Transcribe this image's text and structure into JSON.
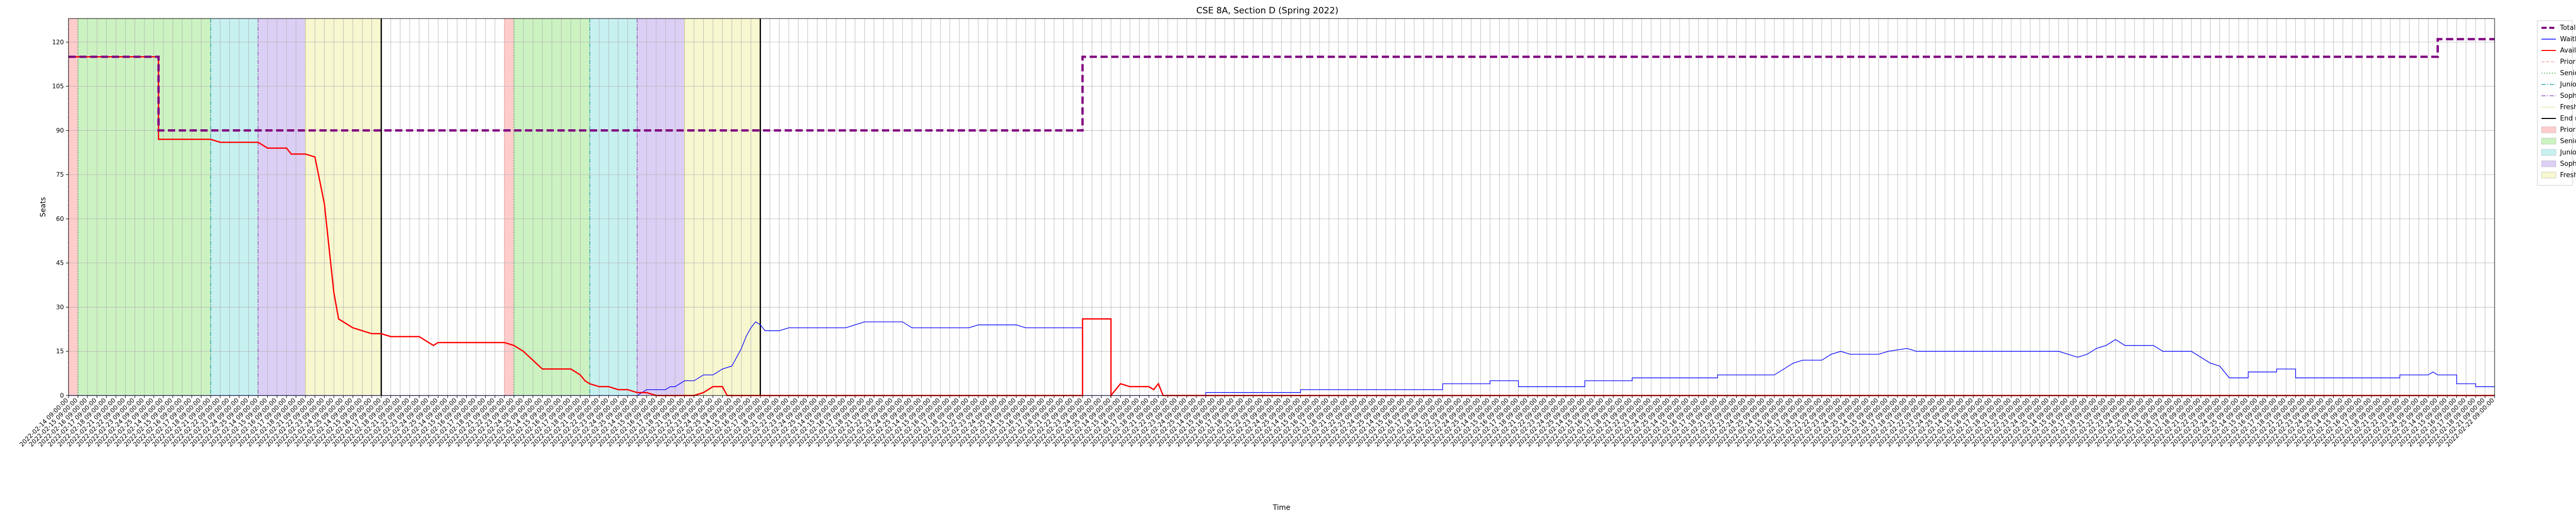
{
  "chart_data": {
    "type": "line",
    "title": "CSE 8A, Section D (Spring 2022)",
    "xlabel": "Time",
    "ylabel": "Seats",
    "ylim": [
      0,
      128
    ],
    "y_ticks": [
      0,
      15,
      30,
      45,
      60,
      75,
      90,
      105,
      120
    ],
    "xlim": [
      0,
      256
    ],
    "x_tick_step": 1,
    "x_tick_labels": [
      "2022-02-14 09:00:00",
      "2022-02-15 09:00:00",
      "2022-02-16 09:00:00",
      "2022-02-17 09:00:00",
      "2022-02-18 09:00:00",
      "2022-02-21 09:00:00",
      "2022-02-22 09:00:00",
      "2022-02-23 09:00:00",
      "2022-02-24 09:00:00",
      "2022-02-25 09:00:00"
    ],
    "grid": true,
    "legend_position": "outside-right",
    "colors": {
      "total": "#800080",
      "waitlist": "#0000ff",
      "available": "#ff0000",
      "phase_line": "#000000",
      "priorities": "#ffcccc",
      "seniors": "#ccf2c2",
      "juniors": "#c7f0f0",
      "sophomores": "#dccff5",
      "freshmen": "#f7f7d0"
    },
    "legend": [
      {
        "label": "Total Seats",
        "kind": "line",
        "color": "#800080",
        "dash": "10,5",
        "width": 4
      },
      {
        "label": "Waitlist",
        "kind": "line",
        "color": "#0000ff",
        "dash": "",
        "width": 1.5
      },
      {
        "label": "Available",
        "kind": "line",
        "color": "#ff0000",
        "dash": "",
        "width": 2
      },
      {
        "label": "Priorities Start",
        "kind": "line",
        "color": "#f4a6a6",
        "dash": "6,3",
        "width": 1.5
      },
      {
        "label": "Seniors Start",
        "kind": "line",
        "color": "#4caf50",
        "dash": "2,3",
        "width": 1.5
      },
      {
        "label": "Juniors Start",
        "kind": "line",
        "color": "#26a6a6",
        "dash": "8,3,2,3",
        "width": 1.5
      },
      {
        "label": "Sophomores Start",
        "kind": "line",
        "color": "#9b59b6",
        "dash": "8,3,2,3",
        "width": 1.5
      },
      {
        "label": "Freshmen Start",
        "kind": "line",
        "color": "#d4d46a",
        "dash": "2,2",
        "width": 1.5
      },
      {
        "label": "End (FP/SP)",
        "kind": "line",
        "color": "#000000",
        "dash": "",
        "width": 2
      },
      {
        "label": "Priorities Start",
        "kind": "patch",
        "color": "#ffcccc"
      },
      {
        "label": "Seniors Start",
        "kind": "patch",
        "color": "#ccf2c2"
      },
      {
        "label": "Juniors Start",
        "kind": "patch",
        "color": "#c7f0f0"
      },
      {
        "label": "Sophomores Start",
        "kind": "patch",
        "color": "#dccff5"
      },
      {
        "label": "Freshmen Start",
        "kind": "patch",
        "color": "#f7f7d0"
      }
    ],
    "phases": [
      {
        "name": "Priorities",
        "start": 0,
        "end": 1
      },
      {
        "name": "Seniors",
        "start": 1,
        "end": 15
      },
      {
        "name": "Juniors",
        "start": 15,
        "end": 20
      },
      {
        "name": "Sophomores",
        "start": 20,
        "end": 25
      },
      {
        "name": "Freshmen",
        "start": 25,
        "end": 33
      },
      {
        "name": "Priorities",
        "start": 46,
        "end": 47
      },
      {
        "name": "Seniors",
        "start": 47,
        "end": 55
      },
      {
        "name": "Juniors",
        "start": 55,
        "end": 60
      },
      {
        "name": "Sophomores",
        "start": 60,
        "end": 65
      },
      {
        "name": "Freshmen",
        "start": 65,
        "end": 73
      }
    ],
    "phase_end_lines": [
      33,
      73
    ],
    "series": [
      {
        "name": "Total Seats",
        "key": "total",
        "points": [
          [
            0,
            115
          ],
          [
            9.5,
            115
          ],
          [
            9.5,
            90
          ],
          [
            107,
            90
          ],
          [
            107,
            115
          ],
          [
            250,
            115
          ],
          [
            250,
            121
          ],
          [
            256,
            121
          ]
        ]
      },
      {
        "name": "Available",
        "key": "available",
        "points": [
          [
            0,
            115
          ],
          [
            9.5,
            115
          ],
          [
            9.5,
            87
          ],
          [
            15,
            87
          ],
          [
            16,
            86
          ],
          [
            20,
            86
          ],
          [
            21,
            84
          ],
          [
            23,
            84
          ],
          [
            23.5,
            82
          ],
          [
            25,
            82
          ],
          [
            26,
            81
          ],
          [
            26.5,
            73
          ],
          [
            27,
            65
          ],
          [
            27.5,
            50
          ],
          [
            28,
            35
          ],
          [
            28.5,
            26
          ],
          [
            29,
            25
          ],
          [
            30,
            23
          ],
          [
            31,
            22
          ],
          [
            32,
            21
          ],
          [
            33,
            21
          ],
          [
            34,
            20
          ],
          [
            37,
            20
          ],
          [
            37.5,
            19
          ],
          [
            38,
            18
          ],
          [
            38.5,
            17
          ],
          [
            39,
            18
          ],
          [
            46,
            18
          ],
          [
            47,
            17
          ],
          [
            48,
            15
          ],
          [
            49,
            12
          ],
          [
            50,
            9
          ],
          [
            53,
            9
          ],
          [
            54,
            7
          ],
          [
            54.5,
            5
          ],
          [
            55,
            4
          ],
          [
            56,
            3
          ],
          [
            57,
            3
          ],
          [
            58,
            2
          ],
          [
            59,
            2
          ],
          [
            60,
            1
          ],
          [
            61,
            1
          ],
          [
            62,
            0
          ],
          [
            66,
            0
          ],
          [
            67,
            1
          ],
          [
            67.5,
            2
          ],
          [
            68,
            3
          ],
          [
            69,
            3
          ],
          [
            69.5,
            0
          ],
          [
            107,
            0
          ],
          [
            107,
            26
          ],
          [
            110,
            26
          ],
          [
            110,
            0
          ],
          [
            111,
            4
          ],
          [
            112,
            3
          ],
          [
            113,
            3
          ],
          [
            114,
            3
          ],
          [
            114.5,
            2
          ],
          [
            115,
            4
          ],
          [
            115.5,
            0
          ],
          [
            256,
            0
          ]
        ]
      },
      {
        "name": "Waitlist",
        "key": "waitlist",
        "points": [
          [
            0,
            0
          ],
          [
            60,
            0
          ],
          [
            61,
            2
          ],
          [
            63,
            2
          ],
          [
            63.5,
            3
          ],
          [
            64,
            3
          ],
          [
            65,
            5
          ],
          [
            66,
            5
          ],
          [
            67,
            7
          ],
          [
            68,
            7
          ],
          [
            68.5,
            8
          ],
          [
            69,
            9
          ],
          [
            70,
            10
          ],
          [
            70.5,
            13
          ],
          [
            71,
            16
          ],
          [
            71.5,
            20
          ],
          [
            72,
            23
          ],
          [
            72.5,
            25
          ],
          [
            73,
            24
          ],
          [
            73.5,
            22
          ],
          [
            75,
            22
          ],
          [
            76,
            23
          ],
          [
            82,
            23
          ],
          [
            83,
            24
          ],
          [
            84,
            25
          ],
          [
            88,
            25
          ],
          [
            89,
            23
          ],
          [
            95,
            23
          ],
          [
            96,
            24
          ],
          [
            100,
            24
          ],
          [
            101,
            23
          ],
          [
            107,
            23
          ],
          [
            107,
            0
          ],
          [
            120,
            0
          ],
          [
            120,
            1
          ],
          [
            130,
            1
          ],
          [
            130,
            2
          ],
          [
            145,
            2
          ],
          [
            145,
            4
          ],
          [
            150,
            4
          ],
          [
            150,
            5
          ],
          [
            153,
            5
          ],
          [
            153,
            3
          ],
          [
            160,
            3
          ],
          [
            160,
            5
          ],
          [
            165,
            5
          ],
          [
            165,
            6
          ],
          [
            174,
            6
          ],
          [
            174,
            7
          ],
          [
            180,
            7
          ],
          [
            181,
            9
          ],
          [
            182,
            11
          ],
          [
            183,
            12
          ],
          [
            185,
            12
          ],
          [
            186,
            14
          ],
          [
            187,
            15
          ],
          [
            188,
            14
          ],
          [
            191,
            14
          ],
          [
            192,
            15
          ],
          [
            194,
            16
          ],
          [
            195,
            15
          ],
          [
            210,
            15
          ],
          [
            211,
            14
          ],
          [
            212,
            13
          ],
          [
            213,
            14
          ],
          [
            214,
            16
          ],
          [
            215,
            17
          ],
          [
            216,
            19
          ],
          [
            217,
            17
          ],
          [
            220,
            17
          ],
          [
            221,
            15
          ],
          [
            224,
            15
          ],
          [
            225,
            13
          ],
          [
            226,
            11
          ],
          [
            227,
            10
          ],
          [
            227.5,
            8
          ],
          [
            228,
            6
          ],
          [
            230,
            6
          ],
          [
            230,
            8
          ],
          [
            233,
            8
          ],
          [
            233,
            9
          ],
          [
            235,
            9
          ],
          [
            235,
            6
          ],
          [
            246,
            6
          ],
          [
            246,
            7
          ],
          [
            249,
            7
          ],
          [
            249.5,
            8
          ],
          [
            250,
            7
          ],
          [
            252,
            7
          ],
          [
            252,
            4
          ],
          [
            254,
            4
          ],
          [
            254,
            3
          ],
          [
            256,
            3
          ]
        ]
      }
    ]
  }
}
